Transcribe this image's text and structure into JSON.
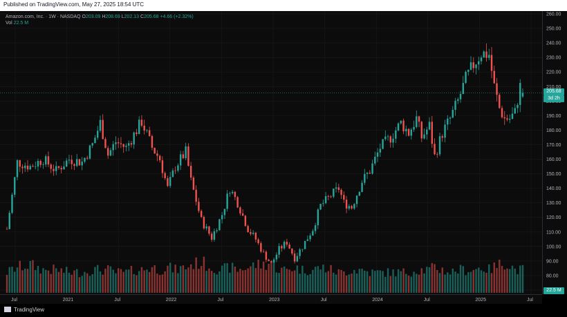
{
  "header": {
    "published": "Published on TradingView.com, May 27, 2025 18:54 UTC"
  },
  "legend": {
    "title": "Amazon.com, Inc. · 1W · NASDAQ",
    "open_label": "O",
    "open": "203.09",
    "high_label": "H",
    "high": "208.69",
    "low_label": "L",
    "low": "202.13",
    "close_label": "C",
    "close": "205.68",
    "change": "+4.66 (+2.32%)",
    "vol_label": "Vol",
    "vol": "22.5 M"
  },
  "badges": {
    "last_price": "205.68",
    "countdown": "3d 2h",
    "volume": "22.5 M"
  },
  "footer": {
    "brand": "TradingView"
  },
  "colors": {
    "up": "#26a69a",
    "down": "#ef5350",
    "bg": "#0c0c0c",
    "grid": "#1a1a1a"
  },
  "chart_data": {
    "type": "candlestick",
    "price_axis": {
      "min": 70,
      "max": 260,
      "ticks": [
        70,
        80,
        90,
        100,
        110,
        120,
        130,
        140,
        150,
        160,
        170,
        180,
        190,
        200,
        210,
        220,
        230,
        240,
        250,
        260
      ]
    },
    "time_ticks": [
      "Jul",
      "2021",
      "Jul",
      "2022",
      "Jul",
      "2023",
      "Jul",
      "2024",
      "Jul",
      "2025",
      "Jul"
    ],
    "time_tick_weeks": [
      0,
      26,
      52,
      78,
      104,
      130,
      156,
      182,
      208,
      234,
      260
    ],
    "anchors": [
      [
        0,
        112,
        0.8
      ],
      [
        4,
        158,
        1.0
      ],
      [
        9,
        155,
        1.1
      ],
      [
        14,
        160,
        0.9
      ],
      [
        19,
        152,
        0.9
      ],
      [
        24,
        160,
        0.8
      ],
      [
        29,
        158,
        0.8
      ],
      [
        33,
        170,
        0.9
      ],
      [
        36,
        185,
        0.9
      ],
      [
        39,
        163,
        0.9
      ],
      [
        42,
        172,
        0.8
      ],
      [
        46,
        168,
        0.8
      ],
      [
        50,
        180,
        0.9
      ],
      [
        52,
        186,
        0.9
      ],
      [
        56,
        168,
        1.0
      ],
      [
        59,
        160,
        0.9
      ],
      [
        62,
        140,
        1.0
      ],
      [
        65,
        155,
        0.9
      ],
      [
        69,
        165,
        1.0
      ],
      [
        71,
        145,
        1.1
      ],
      [
        75,
        118,
        1.2
      ],
      [
        79,
        106,
        1.0
      ],
      [
        83,
        122,
        0.9
      ],
      [
        86,
        140,
        1.0
      ],
      [
        89,
        130,
        0.9
      ],
      [
        93,
        112,
        1.0
      ],
      [
        96,
        105,
        1.1
      ],
      [
        99,
        95,
        1.1
      ],
      [
        102,
        88,
        1.2
      ],
      [
        105,
        98,
        0.9
      ],
      [
        108,
        103,
        0.9
      ],
      [
        111,
        92,
        1.0
      ],
      [
        114,
        100,
        0.9
      ],
      [
        118,
        112,
        0.9
      ],
      [
        121,
        128,
        1.0
      ],
      [
        125,
        135,
        0.9
      ],
      [
        128,
        140,
        0.8
      ],
      [
        130,
        130,
        0.8
      ],
      [
        133,
        127,
        0.9
      ],
      [
        137,
        145,
        0.9
      ],
      [
        140,
        152,
        0.8
      ],
      [
        144,
        168,
        0.8
      ],
      [
        148,
        175,
        0.8
      ],
      [
        152,
        185,
        0.8
      ],
      [
        155,
        178,
        0.8
      ],
      [
        158,
        188,
        0.9
      ],
      [
        160,
        175,
        0.9
      ],
      [
        163,
        183,
        0.9
      ],
      [
        165,
        162,
        1.0
      ],
      [
        168,
        178,
        0.9
      ],
      [
        171,
        188,
        0.8
      ],
      [
        174,
        200,
        0.9
      ],
      [
        177,
        215,
        0.9
      ],
      [
        180,
        225,
        0.9
      ],
      [
        183,
        233,
        1.0
      ],
      [
        186,
        232,
        0.9
      ],
      [
        188,
        210,
        1.0
      ],
      [
        190,
        195,
        1.1
      ],
      [
        192,
        188,
        1.2
      ],
      [
        194,
        188,
        1.1
      ],
      [
        196,
        192,
        0.9
      ],
      [
        198,
        210,
        0.9
      ],
      [
        199,
        205,
        0.9
      ]
    ],
    "last": {
      "open": 203.09,
      "high": 208.69,
      "low": 202.13,
      "close": 205.68,
      "volume": "22.5 M"
    }
  }
}
